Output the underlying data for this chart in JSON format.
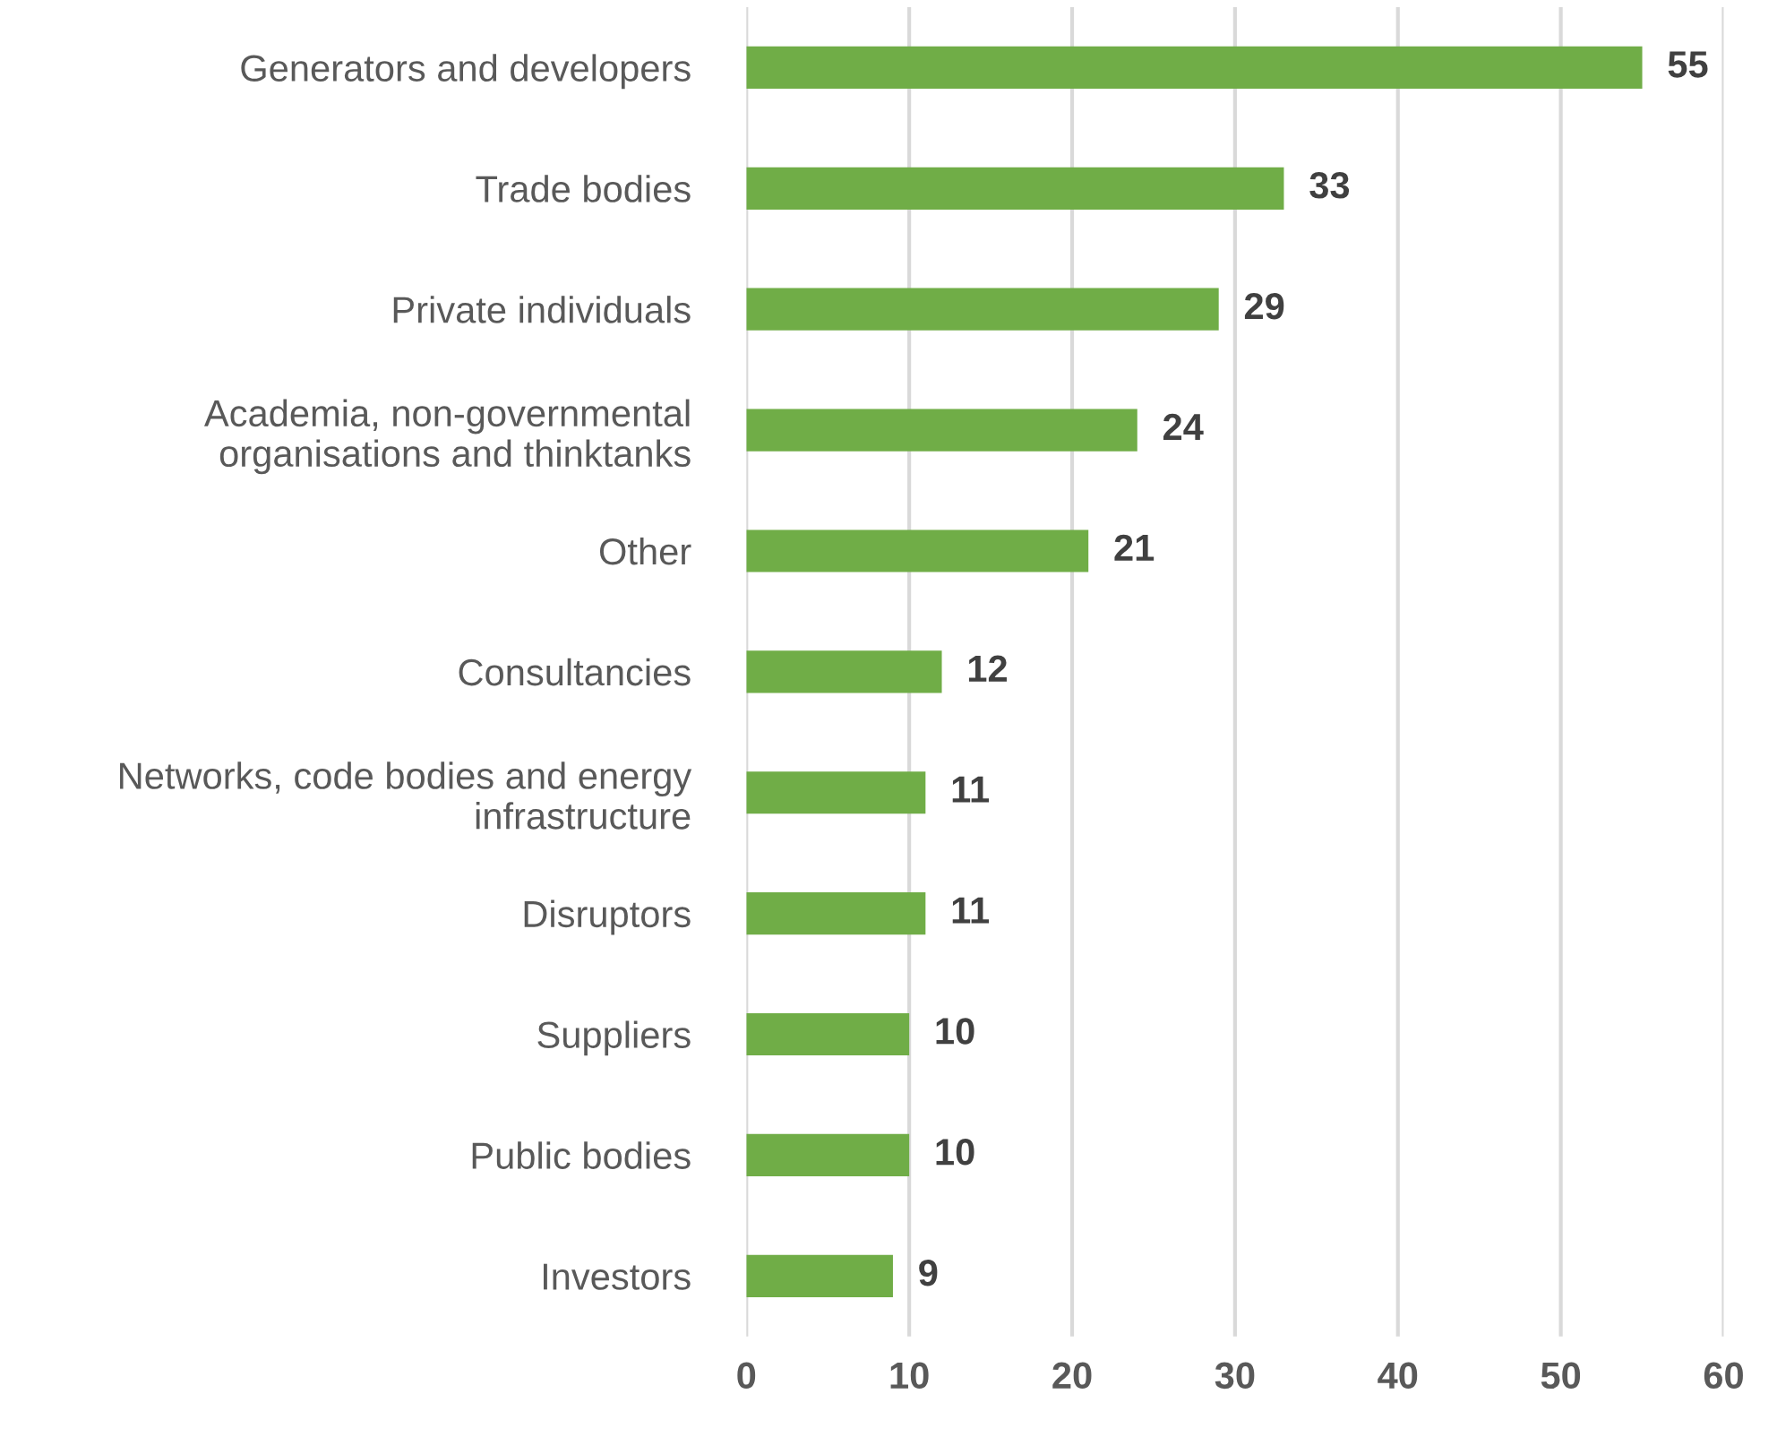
{
  "chart_data": {
    "type": "bar",
    "orientation": "horizontal",
    "categories": [
      "Generators and developers",
      "Trade bodies",
      "Private individuals",
      "Academia, non-governmental\norganisations and thinktanks",
      "Other",
      "Consultancies",
      "Networks, code bodies and energy\ninfrastructure",
      "Disruptors",
      "Suppliers",
      "Public bodies",
      "Investors"
    ],
    "values": [
      55,
      33,
      29,
      24,
      21,
      12,
      11,
      11,
      10,
      10,
      9
    ],
    "color": "#70ad47",
    "xlim": [
      0,
      60
    ],
    "xticks": [
      0,
      10,
      20,
      30,
      40,
      50,
      60
    ],
    "grid": "x",
    "data_labels": true
  }
}
